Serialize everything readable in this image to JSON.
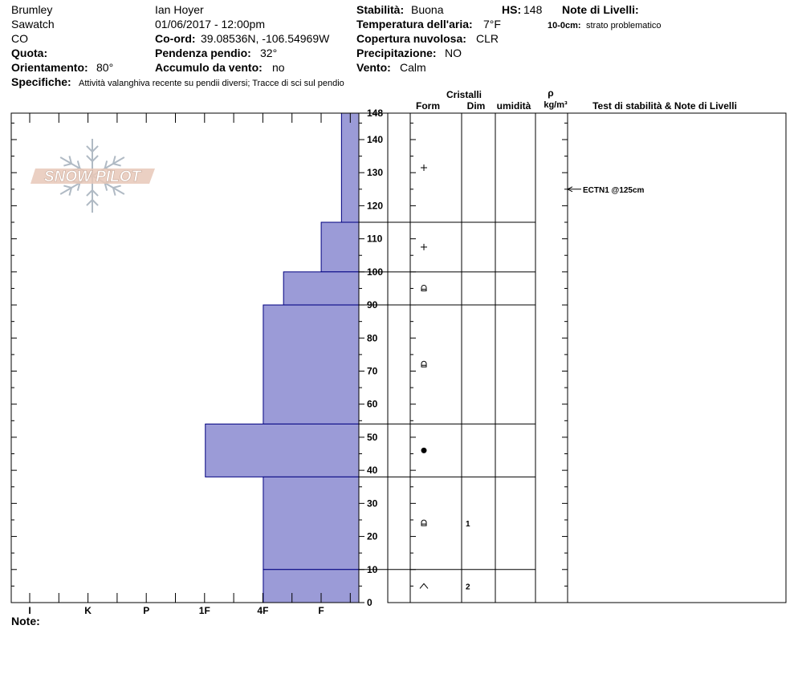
{
  "header": {
    "observer_location": "Brumley",
    "range": "Sawatch",
    "state": "CO",
    "observer": "Ian Hoyer",
    "datetime": "01/06/2017 - 12:00pm",
    "coord_label": "Co-ord:",
    "coord_value": "39.08536N, -106.54969W",
    "elevation_label": "Quota:",
    "elevation_value": "",
    "aspect_label": "Orientamento:",
    "aspect_value": "80°",
    "slope_label": "Pendenza pendio:",
    "slope_value": "32°",
    "wind_loading_label": "Accumulo da vento:",
    "wind_loading_value": "no",
    "stability_label": "Stabilità:",
    "stability_value": "Buona",
    "hs_label": "HS:",
    "hs_value": "148",
    "air_temp_label": "Temperatura dell'aria:",
    "air_temp_value": "7°F",
    "sky_label": "Copertura nuvolosa:",
    "sky_value": "CLR",
    "precip_label": "Precipitazione:",
    "precip_value": "NO",
    "wind_label": "Vento:",
    "wind_value": "Calm",
    "layer_notes_label": "Note di Livelli:",
    "layer_note_range": "10-0cm:",
    "layer_note_text": "strato problematico",
    "specifics_label": "Specifiche:",
    "specifics_value": "Attività valanghiva recente su pendii diversi; Tracce di sci sul pendio"
  },
  "logo_text": "SNOW PILOT",
  "notes_label": "Note:",
  "table_headers": {
    "crystals": "Cristalli",
    "form": "Form",
    "size": "Dim",
    "moisture": "umidità",
    "rho": "ρ",
    "density_unit": "kg/m³",
    "tests_notes": "Test di stabilità & Note di Livelli"
  },
  "colors": {
    "hardness_fill": "#9b9bd7",
    "hardness_stroke": "#000080"
  },
  "chart_data": {
    "type": "bar",
    "orientation": "horizontal",
    "description_axis_y": "snow height (cm)",
    "ylim": [
      0,
      148
    ],
    "y_ticks": [
      0,
      10,
      20,
      30,
      40,
      50,
      60,
      70,
      80,
      90,
      100,
      110,
      120,
      130,
      140,
      148
    ],
    "hardness_categories": [
      "I",
      "K",
      "P",
      "1F",
      "4F",
      "F"
    ],
    "hardness_scale_max": 6,
    "layers": [
      {
        "top": 148,
        "bottom": 115,
        "hardness_value": 0.3,
        "grain": "plus",
        "size": "",
        "moisture": "",
        "density": ""
      },
      {
        "top": 115,
        "bottom": 100,
        "hardness_value": 0.65,
        "grain": "plus",
        "size": "",
        "moisture": "",
        "density": ""
      },
      {
        "top": 100,
        "bottom": 90,
        "hardness_value": 1.3,
        "grain": "faceted-rounded",
        "size": "",
        "moisture": "",
        "density": ""
      },
      {
        "top": 90,
        "bottom": 54,
        "hardness_value": 1.65,
        "grain": "faceted-rounded",
        "size": "",
        "moisture": "",
        "density": ""
      },
      {
        "top": 54,
        "bottom": 38,
        "hardness_value": 2.65,
        "grain": "rounded",
        "size": "",
        "moisture": "",
        "density": ""
      },
      {
        "top": 38,
        "bottom": 10,
        "hardness_value": 1.65,
        "grain": "faceted-rounded",
        "size": "1",
        "moisture": "",
        "density": ""
      },
      {
        "top": 10,
        "bottom": 0,
        "hardness_value": 1.65,
        "grain": "depth-hoar",
        "size": "2",
        "moisture": "",
        "density": ""
      }
    ],
    "stability_tests": [
      {
        "depth": 125,
        "label": "ECTN1 @125cm"
      }
    ]
  }
}
